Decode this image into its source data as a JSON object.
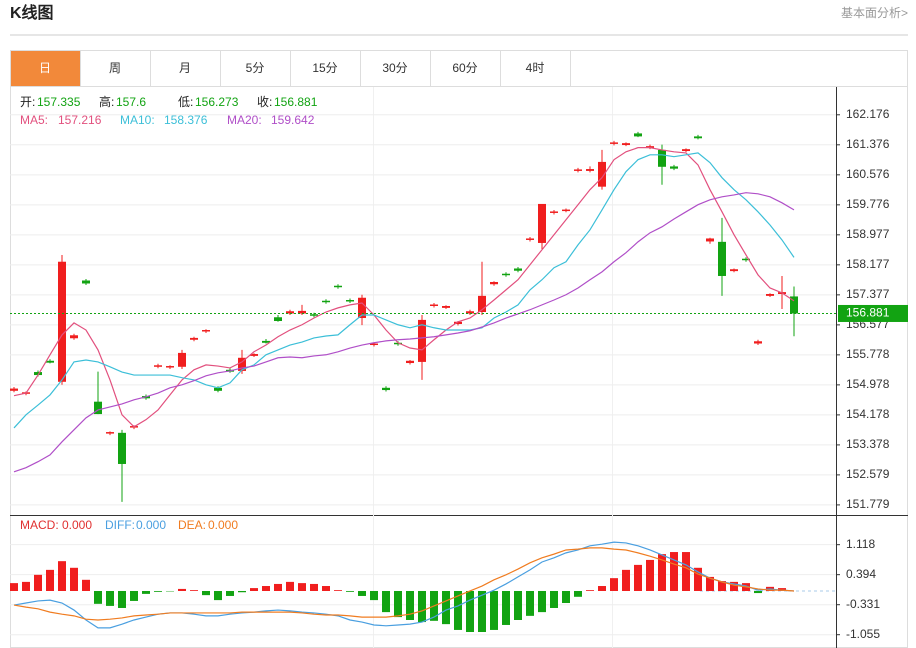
{
  "header": {
    "title": "K线图",
    "link": "基本面分析>"
  },
  "tabs": [
    "日",
    "周",
    "月",
    "5分",
    "15分",
    "30分",
    "60分",
    "4时"
  ],
  "active_tab": 0,
  "chart_data": [
    {
      "type": "candlestick",
      "ohlc_labels": {
        "open": "开:",
        "high": "高:",
        "low": "低:",
        "close": "收:"
      },
      "up_color": "#f01e1e",
      "down_color": "#12a312",
      "open": [
        154.82,
        154.74,
        155.32,
        155.62,
        155.06,
        156.22,
        157.76,
        154.53,
        153.68,
        153.7,
        153.84,
        154.68,
        155.46,
        155.44,
        155.46,
        156.18,
        156.4,
        154.9,
        155.38,
        155.35,
        155.75,
        156.15,
        156.78,
        156.88,
        156.88,
        156.86,
        157.22,
        157.62,
        157.24,
        156.76,
        156.04,
        154.9,
        156.1,
        155.56,
        155.59,
        157.08,
        157.03,
        156.6,
        156.88,
        156.92,
        157.66,
        157.94,
        158.08,
        158.84,
        158.76,
        159.56,
        159.61,
        160.68,
        160.68,
        160.26,
        161.4,
        161.37,
        161.68,
        161.29,
        161.24,
        160.8,
        161.21,
        161.6,
        158.8,
        158.79,
        158.01,
        158.34,
        156.08,
        157.35,
        157.4,
        157.335
      ],
      "high": [
        154.92,
        154.8,
        155.36,
        155.66,
        158.44,
        156.34,
        157.8,
        155.33,
        153.74,
        153.78,
        153.9,
        154.72,
        155.54,
        155.5,
        155.91,
        156.26,
        156.46,
        154.94,
        155.42,
        155.91,
        155.82,
        156.2,
        156.84,
        156.98,
        157.11,
        156.9,
        157.26,
        157.66,
        157.28,
        157.38,
        156.1,
        154.94,
        156.14,
        155.64,
        156.84,
        157.16,
        157.1,
        156.68,
        156.98,
        158.26,
        157.74,
        157.98,
        158.12,
        158.92,
        159.8,
        159.64,
        159.68,
        160.76,
        160.8,
        161.24,
        161.48,
        161.44,
        161.72,
        161.38,
        161.38,
        160.84,
        161.28,
        161.64,
        158.9,
        159.43,
        158.08,
        158.38,
        156.18,
        157.42,
        157.88,
        157.6
      ],
      "low": [
        154.78,
        154.7,
        155.2,
        155.55,
        154.98,
        156.18,
        157.64,
        154.2,
        153.64,
        151.86,
        153.8,
        154.58,
        155.42,
        155.4,
        155.4,
        156.14,
        156.36,
        154.78,
        155.3,
        155.27,
        155.72,
        156.08,
        156.66,
        156.84,
        156.84,
        156.78,
        157.14,
        157.54,
        157.16,
        156.57,
        156.0,
        154.8,
        156.02,
        155.52,
        155.11,
        157.04,
        157.0,
        156.56,
        156.84,
        156.84,
        157.62,
        157.86,
        157.98,
        158.8,
        158.6,
        159.52,
        159.58,
        160.64,
        160.64,
        160.18,
        161.36,
        161.34,
        161.58,
        161.26,
        160.31,
        160.7,
        161.18,
        161.52,
        158.74,
        157.35,
        157.98,
        158.26,
        156.04,
        157.32,
        157.0,
        156.273
      ],
      "close": [
        154.88,
        154.78,
        155.24,
        155.57,
        158.26,
        156.3,
        157.68,
        154.2,
        153.72,
        152.87,
        153.88,
        154.62,
        155.5,
        155.48,
        155.83,
        156.23,
        156.44,
        154.82,
        155.33,
        155.7,
        155.8,
        156.1,
        156.68,
        156.94,
        156.95,
        156.82,
        157.18,
        157.58,
        157.2,
        157.3,
        156.08,
        154.84,
        156.06,
        155.62,
        156.71,
        157.12,
        157.08,
        156.66,
        156.94,
        157.35,
        157.72,
        157.9,
        158.02,
        158.88,
        159.8,
        159.6,
        159.65,
        160.72,
        160.73,
        160.92,
        161.44,
        161.42,
        161.6,
        161.34,
        160.79,
        160.74,
        161.26,
        161.55,
        158.88,
        157.88,
        158.06,
        158.3,
        156.14,
        157.4,
        157.45,
        156.881
      ],
      "ylim": [
        151.51,
        162.89
      ],
      "yticks": [
        162.176,
        161.376,
        160.576,
        159.776,
        158.977,
        158.177,
        157.377,
        156.577,
        155.778,
        154.978,
        154.178,
        153.378,
        152.579,
        151.779
      ],
      "series": [
        {
          "name": "MA5:",
          "color": "#e2507e",
          "values": [
            154.69,
            154.76,
            155.24,
            155.78,
            156.31,
            156.63,
            156.44,
            155.91,
            155.11,
            154.18,
            153.86,
            154.05,
            154.31,
            154.71,
            155.11,
            155.38,
            155.51,
            155.48,
            155.43,
            155.59,
            155.86,
            156.04,
            156.26,
            156.44,
            156.58,
            156.76,
            156.92,
            157.03,
            157.11,
            157.16,
            156.84,
            156.44,
            156.1,
            155.96,
            155.91,
            156.18,
            156.44,
            156.66,
            156.76,
            156.98,
            157.24,
            157.51,
            157.78,
            158.18,
            158.58,
            158.98,
            159.38,
            159.78,
            160.18,
            160.5,
            160.98,
            161.19,
            161.3,
            161.3,
            161.24,
            161.19,
            161.16,
            160.84,
            160.18,
            159.59,
            158.98,
            158.44,
            157.91,
            157.56,
            157.43,
            157.216
          ]
        },
        {
          "name": "MA10:",
          "color": "#3cbfd8",
          "values": [
            153.83,
            154.18,
            154.44,
            154.71,
            155.11,
            155.59,
            155.64,
            155.59,
            155.46,
            155.32,
            155.24,
            155.24,
            155.24,
            155.24,
            155.17,
            155.11,
            154.98,
            154.9,
            155.03,
            155.38,
            155.51,
            155.78,
            155.91,
            156.04,
            156.12,
            156.23,
            156.28,
            156.31,
            156.58,
            156.84,
            156.84,
            156.71,
            156.58,
            156.5,
            156.58,
            156.5,
            156.44,
            156.44,
            156.44,
            156.5,
            156.76,
            156.92,
            157.11,
            157.51,
            157.78,
            158.1,
            158.26,
            158.71,
            159.11,
            159.64,
            160.18,
            160.66,
            160.98,
            161.11,
            161.11,
            161.06,
            161.11,
            161.16,
            160.9,
            160.5,
            160.18,
            159.91,
            159.59,
            159.24,
            158.84,
            158.376
          ]
        },
        {
          "name": "MA20:",
          "color": "#b04fc8",
          "values": [
            152.66,
            152.77,
            152.93,
            153.11,
            153.46,
            153.78,
            154.1,
            154.31,
            154.39,
            154.47,
            154.58,
            154.66,
            154.76,
            154.9,
            154.98,
            155.09,
            155.22,
            155.3,
            155.35,
            155.43,
            155.48,
            155.59,
            155.7,
            155.72,
            155.7,
            155.75,
            155.78,
            155.86,
            155.96,
            156.04,
            156.1,
            156.15,
            156.18,
            156.2,
            156.23,
            156.26,
            156.31,
            156.36,
            156.42,
            156.52,
            156.63,
            156.76,
            156.87,
            156.98,
            157.11,
            157.24,
            157.38,
            157.56,
            157.78,
            157.99,
            158.26,
            158.5,
            158.79,
            159.03,
            159.19,
            159.4,
            159.59,
            159.78,
            159.91,
            159.99,
            160.04,
            160.1,
            160.07,
            159.99,
            159.83,
            159.642
          ]
        }
      ]
    },
    {
      "type": "macd",
      "ylim": [
        -1.376,
        1.786
      ],
      "yticks": [
        1.118,
        0.394,
        -0.331,
        -1.055
      ],
      "series": [
        {
          "name": "MACD:",
          "kind": "bar",
          "readout": "0.000",
          "color": "#e03030",
          "up_color": "#f01e1e",
          "down_color": "#12a312",
          "values": [
            0.19,
            0.22,
            0.39,
            0.51,
            0.72,
            0.56,
            0.27,
            -0.31,
            -0.36,
            -0.41,
            -0.24,
            -0.07,
            -0.02,
            -0.01,
            0.05,
            0.02,
            -0.1,
            -0.22,
            -0.12,
            -0.03,
            0.07,
            0.12,
            0.17,
            0.22,
            0.19,
            0.17,
            0.12,
            0.02,
            -0.02,
            -0.12,
            -0.22,
            -0.51,
            -0.63,
            -0.7,
            -0.75,
            -0.72,
            -0.8,
            -0.94,
            -0.99,
            -0.99,
            -0.94,
            -0.82,
            -0.7,
            -0.6,
            -0.51,
            -0.41,
            -0.29,
            -0.14,
            0.02,
            0.12,
            0.31,
            0.51,
            0.63,
            0.75,
            0.89,
            0.94,
            0.94,
            0.56,
            0.34,
            0.24,
            0.22,
            0.19,
            -0.05,
            0.1,
            0.07,
            0
          ]
        },
        {
          "name": "DIFF:",
          "kind": "line",
          "readout": "0.000",
          "color": "#4a9fe0",
          "values": [
            -0.34,
            -0.29,
            -0.24,
            -0.22,
            -0.29,
            -0.46,
            -0.7,
            -0.89,
            -0.89,
            -0.8,
            -0.7,
            -0.63,
            -0.56,
            -0.53,
            -0.53,
            -0.56,
            -0.6,
            -0.6,
            -0.56,
            -0.53,
            -0.51,
            -0.48,
            -0.46,
            -0.48,
            -0.51,
            -0.53,
            -0.56,
            -0.6,
            -0.7,
            -0.75,
            -0.82,
            -0.84,
            -0.82,
            -0.8,
            -0.75,
            -0.63,
            -0.46,
            -0.36,
            -0.22,
            -0.1,
            0.02,
            0.17,
            0.34,
            0.51,
            0.7,
            0.8,
            0.92,
            0.99,
            1.09,
            1.13,
            1.18,
            1.16,
            1.09,
            0.99,
            0.87,
            0.75,
            0.63,
            0.46,
            0.31,
            0.22,
            0.17,
            0.12,
            0.02,
            0.05,
            0.02,
            0
          ]
        },
        {
          "name": "DEA:",
          "kind": "line",
          "readout": "0.000",
          "color": "#f07c20",
          "values": [
            -0.34,
            -0.39,
            -0.43,
            -0.51,
            -0.56,
            -0.6,
            -0.68,
            -0.7,
            -0.68,
            -0.65,
            -0.6,
            -0.58,
            -0.56,
            -0.53,
            -0.53,
            -0.53,
            -0.53,
            -0.53,
            -0.53,
            -0.51,
            -0.51,
            -0.51,
            -0.51,
            -0.51,
            -0.53,
            -0.56,
            -0.58,
            -0.58,
            -0.6,
            -0.63,
            -0.63,
            -0.63,
            -0.6,
            -0.56,
            -0.48,
            -0.36,
            -0.24,
            -0.12,
            0,
            0.12,
            0.27,
            0.39,
            0.53,
            0.68,
            0.8,
            0.89,
            0.99,
            1.01,
            1.04,
            1.04,
            1.01,
            0.99,
            0.92,
            0.84,
            0.75,
            0.65,
            0.56,
            0.41,
            0.31,
            0.22,
            0.14,
            0.1,
            0.05,
            0.02,
            0.02,
            0
          ]
        }
      ]
    }
  ]
}
